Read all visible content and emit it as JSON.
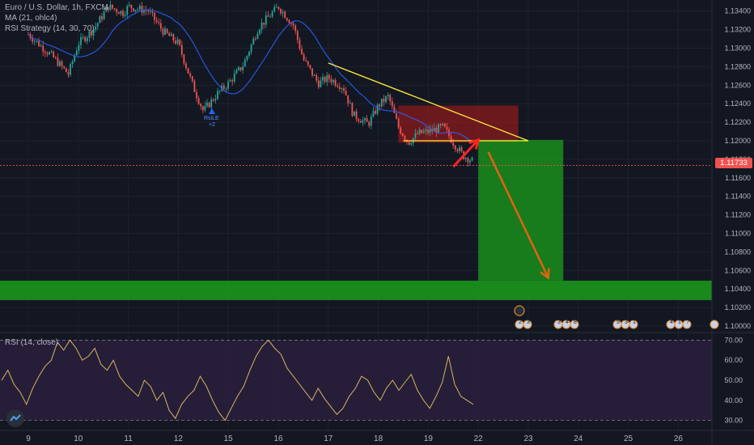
{
  "legend": {
    "symbol": "Euro / U.S. Dollar, 1h, FXCM",
    "ma": "MA (21, ohlc4)",
    "strategy": "RSI Strategy (14, 30, 70)",
    "rsi": "RSI (14, close)"
  },
  "last_price": "1.11733",
  "signal": {
    "label": "RsiLE",
    "sub": "+2"
  },
  "events": [
    {
      "id": "e1",
      "badge": "2",
      "badge2": "3"
    },
    {
      "id": "e2",
      "badge": "3",
      "badge2": "4",
      "badge3": "8"
    },
    {
      "id": "e3",
      "badge": "5",
      "badge2": "3",
      "badge3": "1"
    },
    {
      "id": "e4",
      "badge": "4",
      "badge2": "1",
      "badge3": "?"
    }
  ],
  "colors": {
    "background": "#131722",
    "grid": "#1e222d",
    "candle_up": "#26a69a",
    "candle_down": "#ef5350",
    "ma_line": "#2962ff",
    "trendline": "#ffeb3b",
    "zone_red": "#b71c1c",
    "zone_green": "#1b9e1b",
    "rsi_line": "#d4b85a",
    "rsi_band": "#2a1f3d",
    "arrow_red": "#ff2222",
    "arrow_orange": "#e06410"
  },
  "chart_data": [
    {
      "type": "candlestick",
      "title": "Euro / U.S. Dollar, 1h, FXCM",
      "x_ticks": [
        "9",
        "10",
        "11",
        "12",
        "15",
        "16",
        "17",
        "18",
        "19",
        "22",
        "23",
        "24",
        "25",
        "26"
      ],
      "y_ticks": [
        "1.13400",
        "1.13200",
        "1.13000",
        "1.12800",
        "1.12600",
        "1.12400",
        "1.12200",
        "1.12000",
        "1.11800",
        "1.11600",
        "1.11400",
        "1.11200",
        "1.11000",
        "1.10800",
        "1.10600",
        "1.10400",
        "1.10200",
        "1.10000"
      ],
      "ylim": [
        1.0993,
        1.1352
      ],
      "last_price": 1.11733,
      "ma_period": 21,
      "close_path": [
        [
          "9",
          1.1315
        ],
        [
          "9.5",
          1.129
        ],
        [
          "9.8",
          1.1272
        ],
        [
          "10",
          1.1305
        ],
        [
          "10.3",
          1.132
        ],
        [
          "10.6",
          1.1345
        ],
        [
          "10.9",
          1.1338
        ],
        [
          "11",
          1.1345
        ],
        [
          "11.4",
          1.134
        ],
        [
          "11.7",
          1.1318
        ],
        [
          "12",
          1.1305
        ],
        [
          "12.3",
          1.1258
        ],
        [
          "12.5",
          1.1232
        ],
        [
          "12.8",
          1.1252
        ],
        [
          "15",
          1.1262
        ],
        [
          "15.3",
          1.1282
        ],
        [
          "15.6",
          1.1322
        ],
        [
          "16",
          1.1345
        ],
        [
          "16.3",
          1.1325
        ],
        [
          "16.5",
          1.1288
        ],
        [
          "16.8",
          1.1262
        ],
        [
          "17",
          1.1268
        ],
        [
          "17.3",
          1.1258
        ],
        [
          "17.5",
          1.1228
        ],
        [
          "17.8",
          1.1218
        ],
        [
          "18",
          1.1238
        ],
        [
          "18.2",
          1.1248
        ],
        [
          "18.4",
          1.1215
        ],
        [
          "18.6",
          1.1198
        ],
        [
          "18.8",
          1.1208
        ],
        [
          "19",
          1.121
        ],
        [
          "19.3",
          1.1215
        ],
        [
          "19.5",
          1.1198
        ],
        [
          "19.7",
          1.1184
        ],
        [
          "19.9",
          1.1178
        ]
      ],
      "trendline": [
        [
          "17",
          1.1284
        ],
        [
          "23",
          1.12
        ]
      ],
      "support_line": [
        [
          "18.5",
          1.12
        ],
        [
          "23",
          1.12
        ]
      ],
      "sell_zone": {
        "x": [
          "18.4",
          "22.8"
        ],
        "y": [
          1.1198,
          1.1238
        ]
      },
      "target_zone": {
        "x": [
          "22",
          "23.7"
        ],
        "y": [
          1.1049,
          1.1201
        ]
      },
      "support_band": {
        "y": [
          1.1028,
          1.1049
        ]
      },
      "arrows": [
        {
          "color": "red",
          "from": [
            "20",
            1.1172
          ],
          "to": [
            "22",
            1.1201
          ]
        },
        {
          "color": "orange",
          "from": [
            "22.2",
            1.1188
          ],
          "to": [
            "23.4",
            1.1052
          ]
        }
      ]
    },
    {
      "type": "line",
      "title": "RSI (14, close)",
      "y_ticks": [
        "70.00",
        "60.00",
        "50.00",
        "40.00",
        "30.00"
      ],
      "ylim": [
        25,
        73
      ],
      "bands": [
        30,
        70
      ],
      "series": [
        {
          "name": "RSI (14, close)",
          "values": [
            50,
            55,
            48,
            44,
            38,
            46,
            52,
            57,
            60,
            69,
            65,
            70,
            66,
            60,
            62,
            66,
            58,
            55,
            60,
            52,
            48,
            45,
            42,
            50,
            47,
            40,
            44,
            35,
            31,
            38,
            42,
            45,
            52,
            47,
            40,
            34,
            30,
            36,
            42,
            47,
            55,
            62,
            67,
            70,
            66,
            63,
            56,
            52,
            48,
            44,
            40,
            46,
            41,
            37,
            33,
            36,
            42,
            46,
            52,
            50,
            44,
            40,
            46,
            50,
            45,
            49,
            53,
            45,
            40,
            36,
            42,
            49,
            62,
            48,
            42,
            40,
            38
          ]
        }
      ]
    }
  ]
}
